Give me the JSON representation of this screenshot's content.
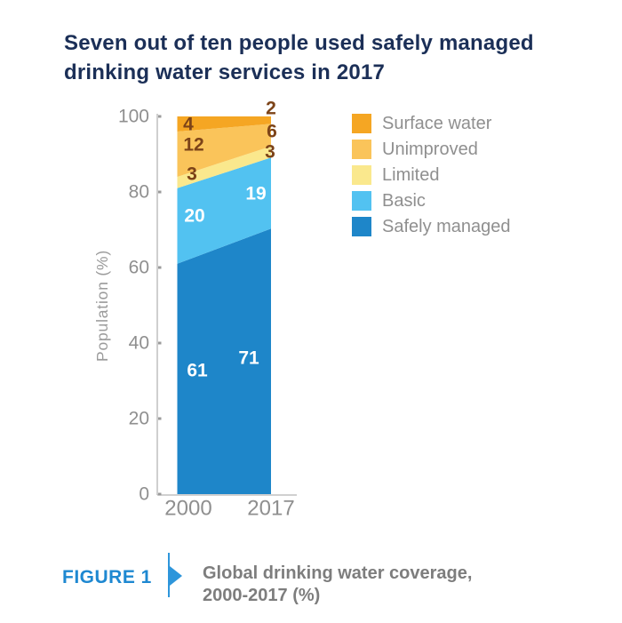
{
  "title": "Seven out of ten people used safely managed drinking water services in 2017",
  "chart_data": {
    "type": "area",
    "stacked": true,
    "categories": [
      "2000",
      "2017"
    ],
    "series": [
      {
        "name": "Safely managed",
        "values": [
          61,
          71
        ],
        "color": "#1e86c9",
        "label_color": "#ffffff"
      },
      {
        "name": "Basic",
        "values": [
          20,
          19
        ],
        "color": "#52c2f1",
        "label_color": "#ffffff"
      },
      {
        "name": "Limited",
        "values": [
          3,
          3
        ],
        "color": "#fae88d",
        "label_color": "#7c4318"
      },
      {
        "name": "Unimproved",
        "values": [
          12,
          6
        ],
        "color": "#fac45a",
        "label_color": "#7c4318"
      },
      {
        "name": "Surface water",
        "values": [
          4,
          2
        ],
        "color": "#f5a623",
        "label_color": "#7c4318"
      }
    ],
    "ylabel": "Population (%)",
    "yticks": [
      0,
      20,
      40,
      60,
      80,
      100
    ],
    "ylim": [
      0,
      100
    ],
    "legend_position": "right",
    "grid": false
  },
  "footer": {
    "figure_label": "FIGURE 1",
    "caption_line1": "Global drinking water coverage,",
    "caption_line2": "2000-2017 (%)"
  },
  "colors": {
    "title_navy": "#1b2f57",
    "figure_blue": "#1e88d1",
    "arrow_blue": "#2e96db",
    "caption_gray": "#7d7d7d",
    "legend_text_gray": "#8f8f8f",
    "axis_line_gray": "#b5b5b5",
    "tick_text_gray": "#8f8f8f",
    "value_label_brown": "#7c4318",
    "background": "#ffffff"
  }
}
